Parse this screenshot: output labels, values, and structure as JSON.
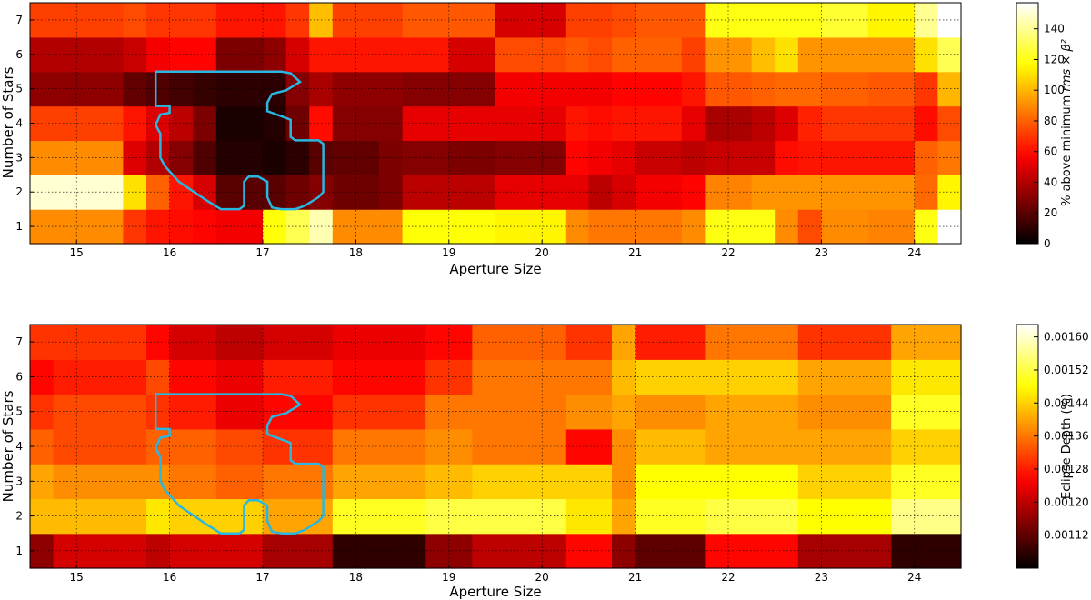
{
  "chart_data": [
    {
      "type": "heatmap",
      "id": "top",
      "xlabel": "Aperture Size",
      "ylabel": "Number of Stars",
      "x_ticks": [
        "15",
        "16",
        "17",
        "18",
        "19",
        "20",
        "21",
        "22",
        "23",
        "24"
      ],
      "y_ticks": [
        "1",
        "2",
        "3",
        "4",
        "5",
        "6",
        "7"
      ],
      "xlim": [
        14.5,
        24.5
      ],
      "ylim": [
        0.5,
        7.5
      ],
      "colorbar": {
        "label_prefix": "% above minimum ",
        "label_math": "rms × β²",
        "ticks": [
          "0",
          "20",
          "40",
          "60",
          "80",
          "100",
          "120",
          "140"
        ],
        "range": [
          0,
          157
        ],
        "colormap": "hot"
      },
      "cell_edges_x": [
        14.5,
        15.5,
        15.75,
        16.0,
        16.25,
        16.5,
        17.0,
        17.25,
        17.5,
        17.75,
        18.25,
        18.5,
        19.0,
        19.5,
        20.25,
        20.5,
        20.75,
        21.0,
        21.5,
        21.75,
        22.25,
        22.5,
        22.75,
        23.0,
        23.5,
        24.0,
        24.25,
        24.5
      ],
      "grid_note": "rows are star counts 1..7, values approximate % above minimum",
      "values": [
        [
          90,
          70,
          62,
          60,
          58,
          55,
          118,
          130,
          145,
          90,
          90,
          118,
          118,
          115,
          90,
          85,
          85,
          85,
          90,
          120,
          120,
          90,
          75,
          90,
          88,
          120,
          157
        ],
        [
          150,
          110,
          80,
          62,
          48,
          20,
          20,
          25,
          30,
          25,
          28,
          42,
          42,
          52,
          52,
          42,
          48,
          55,
          58,
          88,
          92,
          92,
          92,
          92,
          92,
          82,
          115
        ],
        [
          90,
          50,
          40,
          30,
          18,
          8,
          6,
          10,
          20,
          22,
          28,
          30,
          28,
          30,
          58,
          55,
          52,
          45,
          42,
          45,
          45,
          60,
          62,
          62,
          62,
          80,
          85
        ],
        [
          72,
          62,
          50,
          42,
          28,
          6,
          8,
          25,
          60,
          30,
          30,
          52,
          52,
          52,
          62,
          60,
          62,
          62,
          52,
          38,
          42,
          50,
          65,
          70,
          70,
          60,
          75
        ],
        [
          32,
          22,
          18,
          15,
          12,
          10,
          10,
          30,
          38,
          32,
          32,
          30,
          30,
          55,
          55,
          55,
          58,
          58,
          62,
          78,
          80,
          82,
          82,
          80,
          78,
          70,
          100
        ],
        [
          40,
          45,
          55,
          58,
          58,
          28,
          32,
          48,
          62,
          62,
          62,
          62,
          48,
          75,
          78,
          75,
          80,
          80,
          72,
          92,
          102,
          110,
          92,
          92,
          92,
          110,
          130
        ],
        [
          72,
          75,
          70,
          70,
          70,
          62,
          62,
          70,
          102,
          72,
          72,
          78,
          78,
          48,
          72,
          72,
          75,
          78,
          78,
          120,
          120,
          120,
          120,
          125,
          115,
          140,
          157
        ]
      ]
    },
    {
      "type": "heatmap",
      "id": "bottom",
      "xlabel": "Aperture Size",
      "ylabel": "Number of Stars",
      "x_ticks": [
        "15",
        "16",
        "17",
        "18",
        "19",
        "20",
        "21",
        "22",
        "23",
        "24"
      ],
      "y_ticks": [
        "1",
        "2",
        "3",
        "4",
        "5",
        "6",
        "7"
      ],
      "xlim": [
        14.5,
        24.5
      ],
      "ylim": [
        0.5,
        7.5
      ],
      "colorbar": {
        "label": "Eclipse Depth (%)",
        "ticks": [
          "0.00112",
          "0.00120",
          "0.00128",
          "0.00136",
          "0.00144",
          "0.00152",
          "0.00160"
        ],
        "range": [
          0.00104,
          0.00163
        ],
        "colormap": "hot"
      },
      "cell_edges_x": [
        14.5,
        14.75,
        15.75,
        16.0,
        16.5,
        17.0,
        17.75,
        18.75,
        19.25,
        20.25,
        20.75,
        21.0,
        21.75,
        22.75,
        23.75,
        24.5
      ],
      "values": [
        [
          0.00116,
          0.00122,
          0.0012,
          0.00122,
          0.00122,
          0.00118,
          0.00108,
          0.00116,
          0.0012,
          0.00126,
          0.00116,
          0.00112,
          0.00126,
          0.00118,
          0.00108
        ],
        [
          0.00142,
          0.00142,
          0.00146,
          0.00144,
          0.00144,
          0.0014,
          0.0015,
          0.00152,
          0.00152,
          0.00146,
          0.0014,
          0.0015,
          0.00152,
          0.00148,
          0.00156
        ],
        [
          0.0014,
          0.00138,
          0.00138,
          0.00136,
          0.00134,
          0.00136,
          0.0014,
          0.00142,
          0.00144,
          0.00144,
          0.00138,
          0.00148,
          0.00148,
          0.00144,
          0.0015
        ],
        [
          0.00134,
          0.00132,
          0.00134,
          0.00134,
          0.00132,
          0.0013,
          0.00136,
          0.00138,
          0.00136,
          0.00126,
          0.00138,
          0.00142,
          0.0014,
          0.0014,
          0.00144
        ],
        [
          0.0013,
          0.00132,
          0.0013,
          0.00128,
          0.00124,
          0.00126,
          0.0013,
          0.00136,
          0.00136,
          0.00138,
          0.0014,
          0.00138,
          0.0014,
          0.00138,
          0.0015
        ],
        [
          0.00126,
          0.00128,
          0.00132,
          0.00126,
          0.00124,
          0.00128,
          0.00126,
          0.0013,
          0.00136,
          0.00136,
          0.00142,
          0.00144,
          0.00144,
          0.0014,
          0.00146
        ],
        [
          0.0013,
          0.0013,
          0.00126,
          0.00122,
          0.0012,
          0.00122,
          0.00124,
          0.00126,
          0.00134,
          0.0013,
          0.0014,
          0.00128,
          0.00136,
          0.0013,
          0.0014
        ]
      ]
    }
  ],
  "region_outline": {
    "color": "#29b6e0",
    "points": [
      [
        15.85,
        5.5
      ],
      [
        17.2,
        5.5
      ],
      [
        17.3,
        5.45
      ],
      [
        17.4,
        5.2
      ],
      [
        17.25,
        4.95
      ],
      [
        17.1,
        4.85
      ],
      [
        17.05,
        4.6
      ],
      [
        17.05,
        4.35
      ],
      [
        17.15,
        4.25
      ],
      [
        17.3,
        4.1
      ],
      [
        17.3,
        3.6
      ],
      [
        17.35,
        3.5
      ],
      [
        17.6,
        3.5
      ],
      [
        17.65,
        3.4
      ],
      [
        17.65,
        2.0
      ],
      [
        17.6,
        1.85
      ],
      [
        17.45,
        1.6
      ],
      [
        17.35,
        1.5
      ],
      [
        17.2,
        1.5
      ],
      [
        17.1,
        1.55
      ],
      [
        17.05,
        1.85
      ],
      [
        17.05,
        2.3
      ],
      [
        16.95,
        2.45
      ],
      [
        16.85,
        2.45
      ],
      [
        16.8,
        2.3
      ],
      [
        16.8,
        1.6
      ],
      [
        16.75,
        1.5
      ],
      [
        16.55,
        1.5
      ],
      [
        16.4,
        1.75
      ],
      [
        16.1,
        2.3
      ],
      [
        15.95,
        2.75
      ],
      [
        15.9,
        3.0
      ],
      [
        15.9,
        3.7
      ],
      [
        15.85,
        3.95
      ],
      [
        15.9,
        4.25
      ],
      [
        16.0,
        4.3
      ],
      [
        16.0,
        4.5
      ],
      [
        15.85,
        4.5
      ],
      [
        15.85,
        5.5
      ]
    ]
  }
}
